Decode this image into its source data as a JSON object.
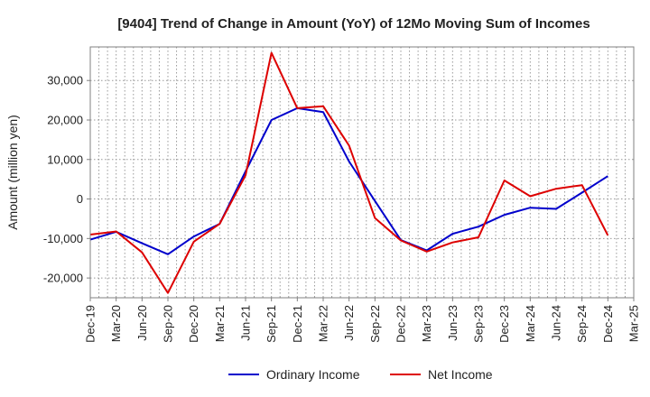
{
  "chart_data": {
    "type": "line",
    "title": "[9404]  Trend of Change in Amount (YoY) of 12Mo Moving Sum of Incomes",
    "xlabel": "",
    "ylabel": "Amount (million yen)",
    "ylim": [
      -25000,
      38500
    ],
    "y_ticks": [
      -20000,
      -10000,
      0,
      10000,
      20000,
      30000
    ],
    "y_tick_labels": [
      "-20,000",
      "-10,000",
      "0",
      "10,000",
      "20,000",
      "30,000"
    ],
    "categories": [
      "Dec-19",
      "Mar-20",
      "Jun-20",
      "Sep-20",
      "Dec-20",
      "Mar-21",
      "Jun-21",
      "Sep-21",
      "Dec-21",
      "Mar-22",
      "Jun-22",
      "Sep-22",
      "Dec-22",
      "Mar-23",
      "Jun-23",
      "Sep-23",
      "Dec-23",
      "Mar-24",
      "Jun-24",
      "Sep-24",
      "Dec-24",
      "Mar-25"
    ],
    "grid": true,
    "legend_position": "bottom-center",
    "series": [
      {
        "name": "Ordinary Income",
        "color": "#0000cc",
        "values": [
          -10300,
          -8300,
          -11200,
          -14000,
          -9500,
          -6300,
          7000,
          20000,
          23000,
          22000,
          9500,
          -500,
          -10400,
          -13000,
          -8800,
          -7000,
          -4000,
          -2200,
          -2500,
          1600,
          5800,
          null
        ]
      },
      {
        "name": "Net Income",
        "color": "#dd0000",
        "values": [
          -9000,
          -8200,
          -13500,
          -23800,
          -10800,
          -6300,
          6000,
          37000,
          23000,
          23500,
          13500,
          -4800,
          -10500,
          -13300,
          -11000,
          -9700,
          4700,
          700,
          2600,
          3500,
          -9200,
          null
        ]
      }
    ]
  }
}
